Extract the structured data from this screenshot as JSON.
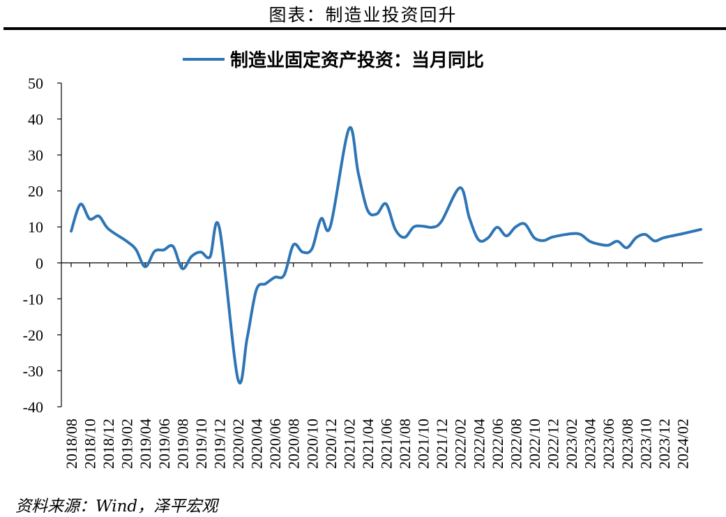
{
  "figure": {
    "title": "图表：制造业投资回升",
    "source": "资料来源：Wind，泽平宏观"
  },
  "chart_data": {
    "type": "line",
    "legend": "制造业固定资产投资：当月同比",
    "series_color": "#2E75B6",
    "ylim": [
      -40,
      50
    ],
    "yticks": [
      50,
      40,
      30,
      20,
      10,
      0,
      -10,
      -20,
      -30,
      -40
    ],
    "xtick_labels": [
      "2018/08",
      "2018/10",
      "2018/12",
      "2019/02",
      "2019/04",
      "2019/06",
      "2019/08",
      "2019/10",
      "2019/12",
      "2020/02",
      "2020/04",
      "2020/06",
      "2020/08",
      "2020/10",
      "2020/12",
      "2021/02",
      "2021/04",
      "2021/06",
      "2021/08",
      "2021/10",
      "2021/12",
      "2022/02",
      "2022/04",
      "2022/06",
      "2022/08",
      "2022/10",
      "2022/12",
      "2023/02",
      "2023/04",
      "2023/06",
      "2023/08",
      "2023/10",
      "2023/12",
      "2024/02"
    ],
    "points": [
      [
        "2018/08",
        8.8
      ],
      [
        "2018/09",
        16.3
      ],
      [
        "2018/10",
        12.2
      ],
      [
        "2018/11",
        13.0
      ],
      [
        "2018/12",
        9.5
      ],
      [
        "2019/02",
        6.0
      ],
      [
        "2019/03",
        3.7
      ],
      [
        "2019/04",
        -1.1
      ],
      [
        "2019/05",
        3.2
      ],
      [
        "2019/06",
        3.6
      ],
      [
        "2019/07",
        4.6
      ],
      [
        "2019/08",
        -1.6
      ],
      [
        "2019/09",
        1.8
      ],
      [
        "2019/10",
        3.0
      ],
      [
        "2019/11",
        1.7
      ],
      [
        "2019/12",
        9.8
      ],
      [
        "2020/02",
        -32.2
      ],
      [
        "2020/03",
        -21.0
      ],
      [
        "2020/04",
        -7.5
      ],
      [
        "2020/05",
        -5.8
      ],
      [
        "2020/06",
        -4.0
      ],
      [
        "2020/07",
        -3.4
      ],
      [
        "2020/08",
        5.0
      ],
      [
        "2020/09",
        3.0
      ],
      [
        "2020/10",
        3.9
      ],
      [
        "2020/11",
        12.3
      ],
      [
        "2020/12",
        10.2
      ],
      [
        "2021/02",
        37.3
      ],
      [
        "2021/03",
        25.0
      ],
      [
        "2021/04",
        14.7
      ],
      [
        "2021/05",
        13.6
      ],
      [
        "2021/06",
        16.4
      ],
      [
        "2021/07",
        9.3
      ],
      [
        "2021/08",
        7.1
      ],
      [
        "2021/09",
        10.0
      ],
      [
        "2021/10",
        10.2
      ],
      [
        "2021/11",
        9.9
      ],
      [
        "2021/12",
        11.6
      ],
      [
        "2022/02",
        20.9
      ],
      [
        "2022/03",
        12.5
      ],
      [
        "2022/04",
        6.4
      ],
      [
        "2022/05",
        6.9
      ],
      [
        "2022/06",
        9.9
      ],
      [
        "2022/07",
        7.5
      ],
      [
        "2022/08",
        10.0
      ],
      [
        "2022/09",
        10.8
      ],
      [
        "2022/10",
        7.0
      ],
      [
        "2022/11",
        6.2
      ],
      [
        "2022/12",
        7.2
      ],
      [
        "2023/02",
        8.1
      ],
      [
        "2023/03",
        7.9
      ],
      [
        "2023/04",
        6.0
      ],
      [
        "2023/05",
        5.2
      ],
      [
        "2023/06",
        4.9
      ],
      [
        "2023/07",
        6.0
      ],
      [
        "2023/08",
        4.2
      ],
      [
        "2023/09",
        7.0
      ],
      [
        "2023/10",
        7.9
      ],
      [
        "2023/11",
        6.1
      ],
      [
        "2023/12",
        7.0
      ],
      [
        "2024/02",
        8.1
      ],
      [
        "2024/03",
        8.7
      ],
      [
        "2024/04",
        9.3
      ]
    ]
  }
}
